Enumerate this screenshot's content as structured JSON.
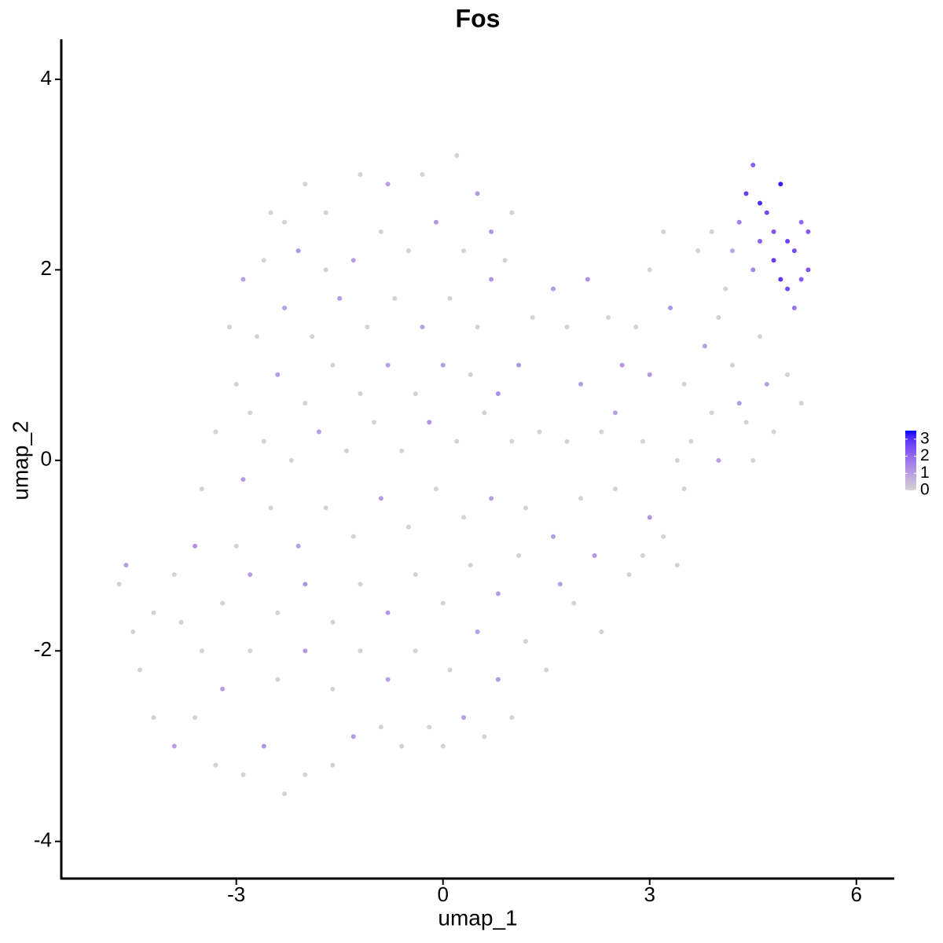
{
  "chart_data": {
    "type": "scatter",
    "title": "Fos",
    "x_label": "umap_1",
    "y_label": "umap_2",
    "xlim": [
      -5.54,
      6.55
    ],
    "ylim": [
      -4.39,
      4.42
    ],
    "xticks": [
      -3,
      0,
      3,
      6
    ],
    "yticks": [
      -4,
      -2,
      0,
      2,
      4
    ],
    "color_low": "#d3d3d3",
    "color_high": "#0000ff",
    "colorbar": {
      "range": [
        0,
        3.5
      ],
      "ticks": [
        0,
        1,
        2,
        3
      ]
    },
    "x": [
      4.4,
      4.5,
      4.6,
      4.9,
      4.7,
      4.8,
      5.0,
      5.2,
      5.3,
      5.1,
      4.9,
      5.0,
      5.3,
      4.6,
      4.3,
      4.5,
      5.2,
      4.8,
      4.2,
      5.1,
      4.0,
      3.8,
      4.2,
      4.6,
      5.0,
      5.2,
      4.8,
      4.5,
      4.3,
      3.9,
      3.5,
      3.3,
      3.7,
      3.2,
      3.0,
      3.5,
      3.2,
      3.4,
      3.0,
      2.9,
      2.6,
      2.4,
      2.1,
      1.8,
      1.6,
      2.0,
      2.3,
      2.5,
      2.7,
      2.2,
      1.9,
      2.3,
      1.5,
      1.7,
      1.2,
      1.4,
      1.1,
      0.8,
      1.3,
      0.9,
      1.0,
      0.5,
      0.7,
      0.2,
      -0.3,
      -0.8,
      -1.2,
      -1.7,
      -2.0,
      -2.3,
      -2.6,
      -2.9,
      -3.1,
      -3.0,
      -3.3,
      -3.5,
      -3.6,
      -3.9,
      -4.2,
      -4.5,
      -4.7,
      -4.6,
      -4.4,
      -4.2,
      -3.9,
      -3.6,
      -3.3,
      -2.9,
      -2.6,
      -2.3,
      -2.0,
      -1.6,
      -1.3,
      -0.9,
      -0.6,
      -0.2,
      0.0,
      0.3,
      0.6,
      1.0,
      0.8,
      1.2,
      0.5,
      0.1,
      -0.4,
      -0.8,
      -1.2,
      -1.6,
      -2.0,
      -2.4,
      -2.8,
      -3.2,
      -3.5,
      -3.8,
      -3.2,
      -2.8,
      -2.4,
      -2.0,
      -1.6,
      -1.2,
      -0.8,
      -0.4,
      0.0,
      0.4,
      0.8,
      1.1,
      0.7,
      0.3,
      -0.1,
      -0.5,
      -0.9,
      -1.3,
      -1.7,
      -2.1,
      -2.5,
      -2.9,
      -3.0,
      -2.6,
      -2.2,
      -1.8,
      -1.4,
      -1.0,
      -0.6,
      -0.2,
      0.2,
      0.6,
      1.0,
      0.4,
      0.0,
      -0.4,
      -0.8,
      -1.2,
      -1.6,
      -2.0,
      -2.4,
      -2.8,
      -2.7,
      -2.3,
      -1.9,
      -1.5,
      -1.1,
      -0.7,
      -0.3,
      0.1,
      0.5,
      0.7,
      0.3,
      -0.1,
      -0.5,
      -0.9,
      -1.3,
      -1.7,
      -2.1,
      -2.5,
      2.8,
      3.0,
      3.6,
      4.0,
      4.4,
      4.7,
      4.1,
      3.9,
      3.4,
      2.0,
      1.6,
      1.8,
      2.5,
      2.9
    ],
    "y": [
      2.8,
      3.1,
      2.7,
      2.9,
      2.6,
      2.4,
      2.3,
      2.5,
      2.4,
      2.2,
      1.9,
      1.8,
      2.0,
      2.3,
      2.5,
      2.0,
      1.9,
      2.1,
      2.2,
      1.6,
      1.5,
      1.2,
      1.0,
      1.3,
      0.9,
      0.6,
      0.3,
      0.0,
      0.6,
      0.5,
      0.8,
      1.6,
      2.2,
      2.4,
      2.0,
      -0.3,
      -0.8,
      -1.1,
      -0.6,
      0.2,
      1.0,
      1.5,
      1.9,
      1.4,
      1.8,
      0.8,
      0.3,
      -0.3,
      -1.2,
      -1.0,
      -1.5,
      -1.8,
      -2.2,
      -1.3,
      -0.5,
      0.3,
      1.0,
      0.7,
      1.5,
      2.1,
      2.6,
      2.8,
      2.4,
      3.2,
      3.0,
      2.9,
      3.0,
      2.6,
      2.9,
      2.5,
      2.1,
      1.9,
      1.4,
      0.8,
      0.3,
      -0.3,
      -0.9,
      -1.2,
      -1.6,
      -1.8,
      -1.3,
      -1.1,
      -2.2,
      -2.7,
      -3.0,
      -2.7,
      -3.2,
      -3.3,
      -3.0,
      -3.5,
      -3.3,
      -3.2,
      -2.9,
      -2.8,
      -3.0,
      -2.8,
      -3.0,
      -2.7,
      -2.9,
      -2.7,
      -2.3,
      -1.9,
      -1.8,
      -2.2,
      -2.0,
      -2.3,
      -2.0,
      -2.4,
      -2.0,
      -2.3,
      -2.0,
      -2.4,
      -2.0,
      -1.7,
      -1.5,
      -1.2,
      -1.6,
      -1.3,
      -1.7,
      -1.3,
      -1.6,
      -1.2,
      -1.5,
      -1.1,
      -1.4,
      -1.0,
      -0.4,
      -0.6,
      -0.3,
      -0.7,
      -0.4,
      -0.8,
      -0.5,
      -0.9,
      -0.5,
      -0.2,
      -0.9,
      0.2,
      0.0,
      0.3,
      0.1,
      0.4,
      0.1,
      0.4,
      0.2,
      0.5,
      0.2,
      0.9,
      1.0,
      0.7,
      1.0,
      0.7,
      1.0,
      0.6,
      0.9,
      0.5,
      1.3,
      1.6,
      1.3,
      1.7,
      1.4,
      1.7,
      1.4,
      1.7,
      1.4,
      1.9,
      2.2,
      2.5,
      2.2,
      2.4,
      2.1,
      2.0,
      2.2,
      2.6,
      1.4,
      0.9,
      0.2,
      0.0,
      0.4,
      0.8,
      1.8,
      2.4,
      0.0,
      -0.4,
      -0.8,
      0.2,
      0.5,
      -1.0
    ],
    "values": [
      2.8,
      2.2,
      3.1,
      3.3,
      2.6,
      2.4,
      2.7,
      2.0,
      2.3,
      2.5,
      2.9,
      2.6,
      2.4,
      2.1,
      1.6,
      1.5,
      2.2,
      2.8,
      0.9,
      1.8,
      0,
      1.0,
      0,
      0,
      0,
      0,
      0,
      0,
      1.1,
      0,
      0,
      1.2,
      0,
      0,
      0,
      0,
      0,
      0,
      1.2,
      0,
      1.1,
      0,
      1.3,
      0,
      1.1,
      1.0,
      0,
      0,
      0,
      1.1,
      0,
      0,
      0,
      1.0,
      0,
      0,
      1.2,
      1.3,
      0,
      0,
      0,
      1.1,
      1.2,
      0,
      0,
      1.0,
      0,
      0,
      0,
      0,
      0,
      1.0,
      0,
      0,
      0,
      0,
      1.2,
      0,
      0,
      0,
      0,
      1.0,
      0,
      0,
      1.0,
      0,
      0,
      0,
      1.2,
      0,
      0,
      0,
      1.1,
      0,
      0,
      0,
      0,
      1.0,
      0,
      0,
      1.1,
      0,
      1.0,
      0,
      0,
      1.0,
      0,
      0,
      1.1,
      0,
      0,
      1.0,
      0,
      0,
      0,
      1.0,
      0,
      1.2,
      0,
      0,
      1.1,
      0,
      0,
      0,
      1.0,
      0,
      1.0,
      0,
      0,
      0,
      1.1,
      0,
      0,
      1.0,
      0,
      1.1,
      0,
      0,
      0,
      1.0,
      0,
      0,
      0,
      1.2,
      0,
      0,
      0,
      0,
      1.1,
      0,
      1.0,
      0,
      0,
      0,
      1.1,
      0,
      0,
      1.0,
      0,
      1.1,
      0,
      0,
      1.0,
      0,
      0,
      1.2,
      0,
      1.1,
      0,
      0,
      1.0,
      0,
      1.2,
      0,
      0,
      1.1,
      0,
      1.0,
      0,
      1.0,
      0,
      0,
      0,
      0,
      1.0,
      0,
      1.0,
      0
    ]
  }
}
